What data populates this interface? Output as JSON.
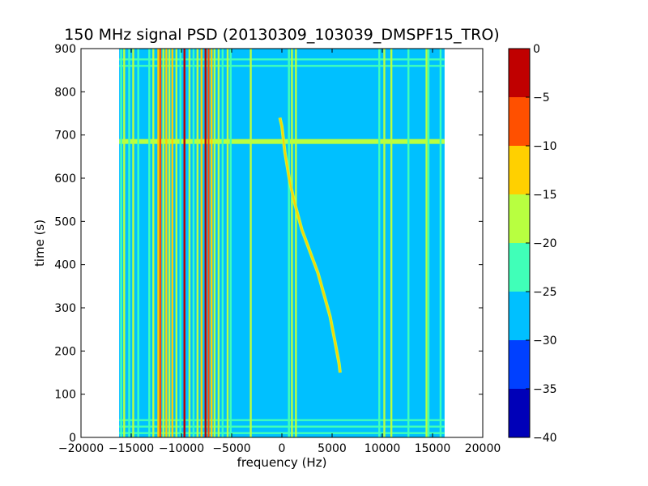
{
  "chart_data": {
    "type": "heatmap",
    "title": "150 MHz signal PSD (20130309_103039_DMSPF15_TRO)",
    "xlabel": "frequency (Hz)",
    "ylabel": "time (s)",
    "xlim": [
      -20000,
      20000
    ],
    "ylim": [
      0,
      900
    ],
    "x_ticks": [
      -20000,
      -15000,
      -10000,
      -5000,
      0,
      5000,
      10000,
      15000,
      20000
    ],
    "y_ticks": [
      0,
      100,
      200,
      300,
      400,
      500,
      600,
      700,
      800,
      900
    ],
    "data_extent_x": [
      -16200,
      16200
    ],
    "data_extent_y": [
      0,
      900
    ],
    "background_level": -27.5,
    "colorbar": {
      "levels": [
        -40,
        -35,
        -30,
        -25,
        -20,
        -15,
        -10,
        -5,
        0
      ],
      "tick_labels": [
        "0",
        "−5",
        "−10",
        "−15",
        "−20",
        "−25",
        "−30",
        "−35",
        "−40"
      ],
      "colors": [
        "#0000b8",
        "#0040ff",
        "#00c0ff",
        "#40ffb8",
        "#b8ff40",
        "#ffd000",
        "#ff5000",
        "#c00000"
      ]
    },
    "vertical_lines": [
      {
        "x": -16000,
        "color": "#40ffb8"
      },
      {
        "x": -15700,
        "color": "#b8ff40"
      },
      {
        "x": -15200,
        "color": "#40ffb8"
      },
      {
        "x": -14800,
        "color": "#b8ff40"
      },
      {
        "x": -14300,
        "color": "#40ffb8"
      },
      {
        "x": -13200,
        "color": "#40ffb8"
      },
      {
        "x": -12800,
        "color": "#b8ff40"
      },
      {
        "x": -12300,
        "color": "#ffd000"
      },
      {
        "x": -12100,
        "color": "#ff5000"
      },
      {
        "x": -11800,
        "color": "#b8ff40"
      },
      {
        "x": -11500,
        "color": "#ffd000"
      },
      {
        "x": -11200,
        "color": "#b8ff40"
      },
      {
        "x": -10900,
        "color": "#ffd000"
      },
      {
        "x": -10500,
        "color": "#b8ff40"
      },
      {
        "x": -10100,
        "color": "#40ffb8"
      },
      {
        "x": -9700,
        "color": "#c00000"
      },
      {
        "x": -9200,
        "color": "#b8ff40"
      },
      {
        "x": -8800,
        "color": "#40ffb8"
      },
      {
        "x": -8400,
        "color": "#b8ff40"
      },
      {
        "x": -8000,
        "color": "#ffd000"
      },
      {
        "x": -7600,
        "color": "#c00000"
      },
      {
        "x": -7300,
        "color": "#ff5000"
      },
      {
        "x": -7000,
        "color": "#ffd000"
      },
      {
        "x": -6700,
        "color": "#b8ff40"
      },
      {
        "x": -6300,
        "color": "#b8ff40"
      },
      {
        "x": -5900,
        "color": "#40ffb8"
      },
      {
        "x": -5400,
        "color": "#b8ff40"
      },
      {
        "x": -5100,
        "color": "#40ffb8"
      },
      {
        "x": -3100,
        "color": "#b8ff40"
      },
      {
        "x": 700,
        "color": "#40ffb8"
      },
      {
        "x": 1000,
        "color": "#b8ff40"
      },
      {
        "x": 1400,
        "color": "#b8ff40"
      },
      {
        "x": 9700,
        "color": "#40ffb8"
      },
      {
        "x": 10200,
        "color": "#b8ff40"
      },
      {
        "x": 10900,
        "color": "#b8ff40"
      },
      {
        "x": 12600,
        "color": "#40ffb8"
      },
      {
        "x": 14400,
        "color": "#b8ff40"
      },
      {
        "x": 14600,
        "color": "#40ffb8"
      },
      {
        "x": 15800,
        "color": "#40ffb8"
      }
    ],
    "horizontal_lines": [
      {
        "y": 685,
        "color": "#b8ff40"
      },
      {
        "y": 875,
        "color": "#40ffb8"
      },
      {
        "y": 860,
        "color": "#40ffb8"
      },
      {
        "y": 40,
        "color": "#40ffb8"
      },
      {
        "y": 25,
        "color": "#40ffb8"
      },
      {
        "y": 10,
        "color": "#40ffb8"
      }
    ],
    "doppler_trace": {
      "color": "#ffd000",
      "points": [
        [
          -200,
          740
        ],
        [
          0,
          720
        ],
        [
          300,
          660
        ],
        [
          800,
          590
        ],
        [
          1300,
          540
        ],
        [
          2000,
          480
        ],
        [
          2800,
          430
        ],
        [
          3600,
          380
        ],
        [
          4200,
          330
        ],
        [
          4800,
          280
        ],
        [
          5300,
          220
        ],
        [
          5700,
          170
        ],
        [
          5800,
          150
        ]
      ]
    }
  }
}
